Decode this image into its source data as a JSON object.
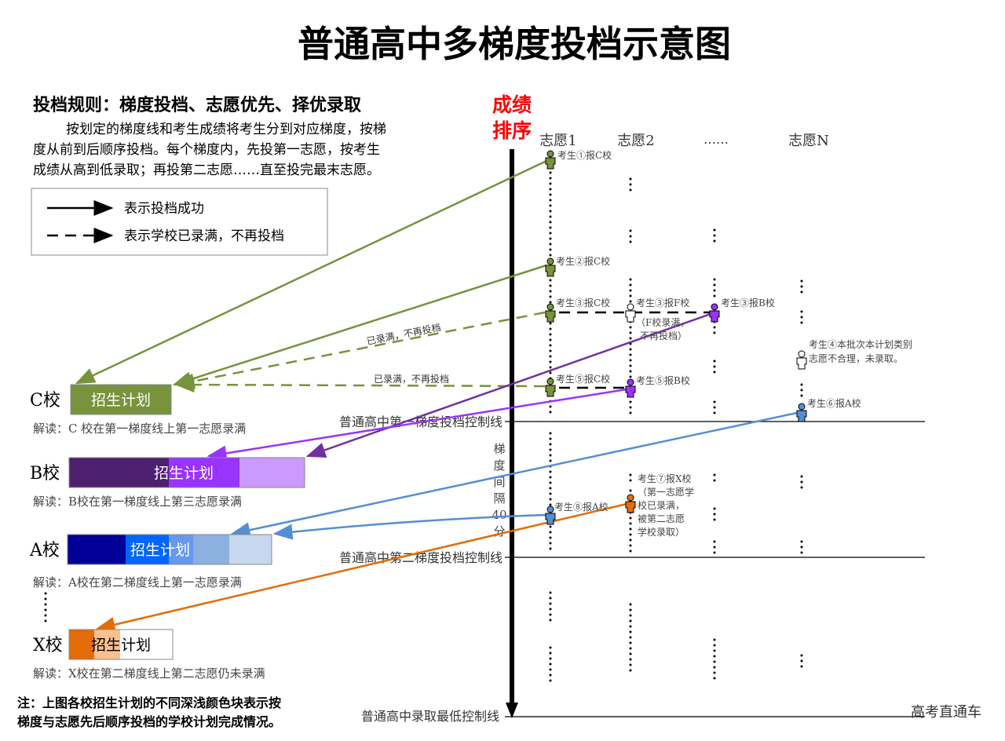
{
  "title": "普通高中多梯度投档示意图",
  "rules": {
    "heading": "投档规则：梯度投档、志愿优先、择优录取",
    "lines": [
      "按划定的梯度线和考生成绩将考生分到对应梯度，按梯",
      "度从前到后顺序投档。每个梯度内，先投第一志愿，按考生",
      "成绩从高到低录取；再投第二志愿……直至投完最末志愿。"
    ]
  },
  "legend": {
    "solid": "表示投档成功",
    "dashed": "表示学校已录满，不再投档"
  },
  "axis": {
    "label_line1": "成绩",
    "label_line2": "排序",
    "color": "#ff0000"
  },
  "columns": [
    "志愿1",
    "志愿2",
    "……",
    "志愿N"
  ],
  "control_lines": {
    "first": "普通高中第一梯度投档控制线",
    "second": "普通高中第二梯度投档控制线",
    "min": "普通高中录取最低控制线"
  },
  "gradient_interval": [
    "梯",
    "度",
    "间",
    "隔",
    "40",
    "分"
  ],
  "students": {
    "s1": "考生①报C校",
    "s2": "考生②报C校",
    "s3c": "考生③报C校",
    "s3f": "考生③报F校",
    "s3f_note": [
      "（F校录满，",
      "不再投档）"
    ],
    "s3b": "考生③报B校",
    "s4_note": [
      "考生④本批次本计划类别",
      "志愿不合理，未录取。"
    ],
    "s5c": "考生⑤报C校",
    "s5b": "考生⑤报B校",
    "s6": "考生⑥报A校",
    "s7": "考生⑦报X校",
    "s7_note": [
      "（第一志愿学",
      "校已录满，",
      "被第二志愿",
      "学校录取）"
    ],
    "s8": "考生⑧报A校"
  },
  "full_labels": [
    "已录满，不再投档",
    "已录满，不再投档"
  ],
  "schools": [
    {
      "name": "C校",
      "plan": "招生计划",
      "note": "解读：C 校在第一梯度线上第一志愿录满",
      "colors": [
        "#77933c"
      ]
    },
    {
      "name": "B校",
      "plan": "招生计划",
      "note": "解读：B校在第一梯度线上第三志愿录满",
      "colors": [
        "#4f1f6f",
        "#9933ff",
        "#cc99ff"
      ]
    },
    {
      "name": "A校",
      "plan": "招生计划",
      "note": "解读：A校在第二梯度线上第一志愿录满",
      "colors": [
        "#000099",
        "#0066ff",
        "#6699ee",
        "#8cb0e0",
        "#c6d7ee"
      ]
    },
    {
      "name": "X校",
      "plan": "招生计划",
      "note": "解读：X校在第二梯度线上第二志愿仍未录满",
      "colors": [
        "#e36c09",
        "#f9bf8f",
        "#ffffff"
      ]
    }
  ],
  "footnote": [
    "注：上图各校招生计划的不同深浅颜色块表示按",
    "梯度与志愿先后顺序投档的学校计划完成情况。"
  ],
  "watermark": "高考直通车",
  "colors": {
    "green": "#77933c",
    "purple_dark": "#7030a0",
    "purple": "#9933ff",
    "blue": "#558ed5",
    "orange": "#e36c09",
    "white": "#ffffff"
  }
}
